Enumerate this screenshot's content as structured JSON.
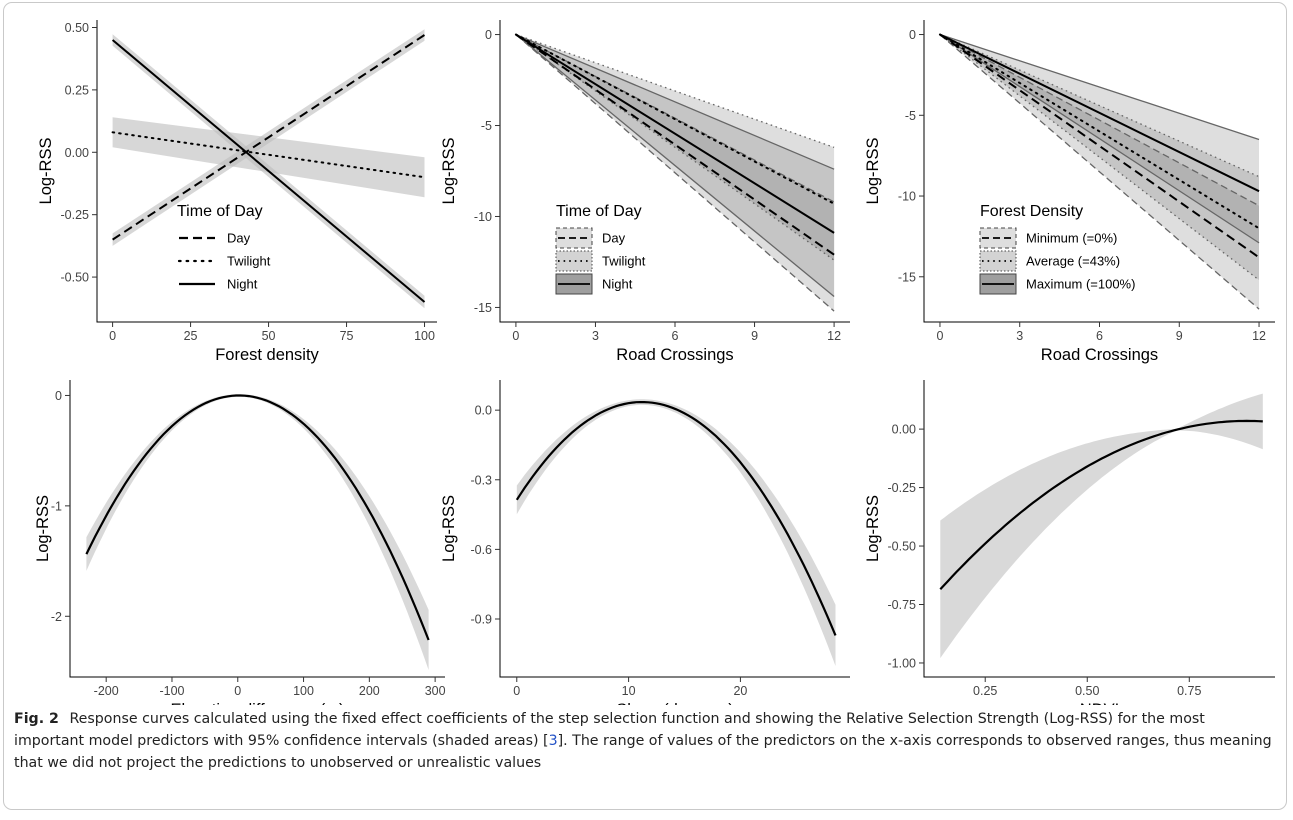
{
  "caption": {
    "label": "Fig. 2",
    "text_before_ref": "Response curves calculated using the fixed effect coefficients of the step selection function and showing the Relative Selection Strength (Log-RSS) for the most important model predictors with 95% confidence intervals (shaded areas) [",
    "ref": "3",
    "text_after_ref": "]. The range of values of the predictors on the x-axis corresponds to observed ranges, thus meaning that we did not project the predictions to unobserved or unrealistic values"
  },
  "chart_data": [
    {
      "type": "line",
      "xlabel": "Forest density",
      "ylabel": "Log-RSS",
      "xlim": [
        -5,
        104
      ],
      "ylim": [
        -0.68,
        0.53
      ],
      "xticks": [
        0,
        25,
        50,
        75,
        100
      ],
      "xticklabels": [
        "0",
        "25",
        "50",
        "75",
        "100"
      ],
      "yticks": [
        0.5,
        0.25,
        0,
        -0.25,
        -0.5
      ],
      "yticklabels": [
        "0.50",
        "0.25",
        "0.00",
        "-0.25",
        "-0.50"
      ],
      "legend": {
        "title": "Time of Day",
        "position": "bottom-left",
        "style": "lines"
      },
      "series": [
        {
          "name": "Day",
          "dash": "dash",
          "x": [
            0,
            100
          ],
          "y": [
            -0.35,
            0.47
          ],
          "lower": [
            -0.375,
            0.447
          ],
          "upper": [
            -0.325,
            0.493
          ],
          "ci_shape": "linear"
        },
        {
          "name": "Twilight",
          "dash": "dot",
          "x": [
            0,
            100
          ],
          "y": [
            0.08,
            -0.1
          ],
          "lower": [
            0.02,
            -0.18
          ],
          "upper": [
            0.14,
            -0.02
          ],
          "ci_shape": "linear"
        },
        {
          "name": "Night",
          "dash": "solid",
          "x": [
            0,
            100
          ],
          "y": [
            0.45,
            -0.6
          ],
          "lower": [
            0.427,
            -0.625
          ],
          "upper": [
            0.473,
            -0.575
          ],
          "ci_shape": "linear"
        }
      ]
    },
    {
      "type": "line",
      "xlabel": "Road Crossings",
      "ylabel": "Log-RSS",
      "xlim": [
        -0.6,
        12.6
      ],
      "ylim": [
        -15.8,
        0.8
      ],
      "xticks": [
        0,
        3,
        6,
        9,
        12
      ],
      "xticklabels": [
        "0",
        "3",
        "6",
        "9",
        "12"
      ],
      "yticks": [
        0,
        -5,
        -10,
        -15
      ],
      "yticklabels": [
        "0",
        "-5",
        "-10",
        "-15"
      ],
      "legend": {
        "title": "Time of Day",
        "position": "bottom-left",
        "style": "boxes"
      },
      "series": [
        {
          "name": "Day",
          "dash": "dash",
          "x": [
            0,
            12
          ],
          "y": [
            0,
            -12.1
          ],
          "lower": [
            0,
            -15.2
          ],
          "upper": [
            0,
            -9.2
          ],
          "ci_shape": "linear"
        },
        {
          "name": "Twilight",
          "dash": "dot",
          "x": [
            0,
            12
          ],
          "y": [
            0,
            -9.3
          ],
          "lower": [
            0,
            -12.4
          ],
          "upper": [
            0,
            -6.2
          ],
          "ci_shape": "linear"
        },
        {
          "name": "Night",
          "dash": "solid",
          "x": [
            0,
            12
          ],
          "y": [
            0,
            -10.9
          ],
          "lower": [
            0,
            -14.4
          ],
          "upper": [
            0,
            -7.4
          ],
          "ci_shape": "linear"
        }
      ]
    },
    {
      "type": "line",
      "xlabel": "Road Crossings",
      "ylabel": "Log-RSS",
      "xlim": [
        -0.6,
        12.6
      ],
      "ylim": [
        -17.8,
        0.9
      ],
      "xticks": [
        0,
        3,
        6,
        9,
        12
      ],
      "xticklabels": [
        "0",
        "3",
        "6",
        "9",
        "12"
      ],
      "yticks": [
        0,
        -5,
        -10,
        -15
      ],
      "yticklabels": [
        "0",
        "-5",
        "-10",
        "-15"
      ],
      "legend": {
        "title": "Forest Density",
        "position": "bottom-left",
        "style": "boxes"
      },
      "series": [
        {
          "name": "Minimum (=0%)",
          "dash": "dash",
          "x": [
            0,
            12
          ],
          "y": [
            0,
            -13.8
          ],
          "lower": [
            0,
            -17.0
          ],
          "upper": [
            0,
            -10.6
          ],
          "ci_shape": "linear"
        },
        {
          "name": "Average (=43%)",
          "dash": "dot",
          "x": [
            0,
            12
          ],
          "y": [
            0,
            -12.0
          ],
          "lower": [
            0,
            -15.2
          ],
          "upper": [
            0,
            -8.8
          ],
          "ci_shape": "linear"
        },
        {
          "name": "Maximum (=100%)",
          "dash": "solid",
          "x": [
            0,
            12
          ],
          "y": [
            0,
            -9.7
          ],
          "lower": [
            0,
            -12.9
          ],
          "upper": [
            0,
            -6.5
          ],
          "ci_shape": "linear"
        }
      ]
    },
    {
      "type": "line",
      "xlabel": "Elevation difference (m)",
      "ylabel": "Log-RSS",
      "xlim": [
        -255,
        315
      ],
      "ylim": [
        -2.55,
        0.14
      ],
      "xticks": [
        -200,
        -100,
        0,
        100,
        200,
        300
      ],
      "xticklabels": [
        "-200",
        "-100",
        "0",
        "100",
        "200",
        "300"
      ],
      "yticks": [
        0,
        -1,
        -2
      ],
      "yticklabels": [
        "0",
        "-1",
        "-2"
      ],
      "curve": {
        "kind": "quadratic",
        "x_min": -230,
        "x_max": 290,
        "vertex_x": 2,
        "vertex_y": 0.0,
        "a": -2.67e-05,
        "ci_end_halfwidth": [
          0.14,
          0.26
        ]
      }
    },
    {
      "type": "line",
      "xlabel": "Slope (degrees)",
      "ylabel": "Log-RSS",
      "xlim": [
        -1.5,
        29.8
      ],
      "ylim": [
        -1.15,
        0.13
      ],
      "xticks": [
        0,
        10,
        20
      ],
      "xticklabels": [
        "0",
        "10",
        "20"
      ],
      "yticks": [
        0,
        -0.3,
        -0.6,
        -0.9
      ],
      "yticklabels": [
        "0.0",
        "-0.3",
        "-0.6",
        "-0.9"
      ],
      "curve": {
        "kind": "quadratic",
        "x_min": 0,
        "x_max": 28.5,
        "vertex_x": 11.2,
        "vertex_y": 0.035,
        "a": -0.00336,
        "ci_end_halfwidth": [
          0.05,
          0.12
        ]
      }
    },
    {
      "type": "line",
      "xlabel": "NDVI",
      "ylabel": "Log-RSS",
      "xlim": [
        0.1,
        0.96
      ],
      "ylim": [
        -1.06,
        0.21
      ],
      "xticks": [
        0.25,
        0.5,
        0.75
      ],
      "xticklabels": [
        "0.25",
        "0.50",
        "0.75"
      ],
      "yticks": [
        0,
        -0.25,
        -0.5,
        -0.75,
        -1.0
      ],
      "yticklabels": [
        "0.00",
        "-0.25",
        "-0.50",
        "-0.75",
        "-1.00"
      ],
      "curve": {
        "kind": "quadratic",
        "x_min": 0.14,
        "x_max": 0.93,
        "vertex_x": 0.89,
        "vertex_y": 0.035,
        "a": -1.28,
        "ci_anchor_x": 0.72,
        "ci_end_halfwidth": [
          0.29,
          0.115
        ]
      }
    }
  ]
}
